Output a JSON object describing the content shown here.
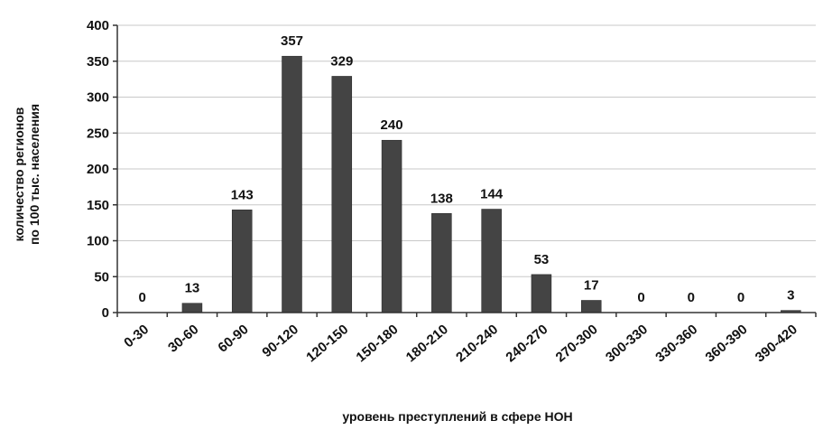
{
  "chart_data": {
    "type": "bar",
    "categories": [
      "0-30",
      "30-60",
      "60-90",
      "90-120",
      "120-150",
      "150-180",
      "180-210",
      "210-240",
      "240-270",
      "270-300",
      "300-330",
      "330-360",
      "360-390",
      "390-420"
    ],
    "values": [
      0,
      13,
      143,
      357,
      329,
      240,
      138,
      144,
      53,
      17,
      0,
      0,
      0,
      3
    ],
    "data_labels": [
      "0",
      "13",
      "143",
      "357",
      "329",
      "240",
      "138",
      "144",
      "53",
      "17",
      "0",
      "0",
      "0",
      "3"
    ],
    "xlabel": "уровень преступлений в сфере НОН",
    "ylabel_lines": [
      "количество регионов",
      "по 100 тыс. населения"
    ],
    "ylim": [
      0,
      400
    ],
    "yticks": [
      0,
      50,
      100,
      150,
      200,
      250,
      300,
      350,
      400
    ],
    "grid": true,
    "legend": "none",
    "bar_color": "#444444"
  }
}
